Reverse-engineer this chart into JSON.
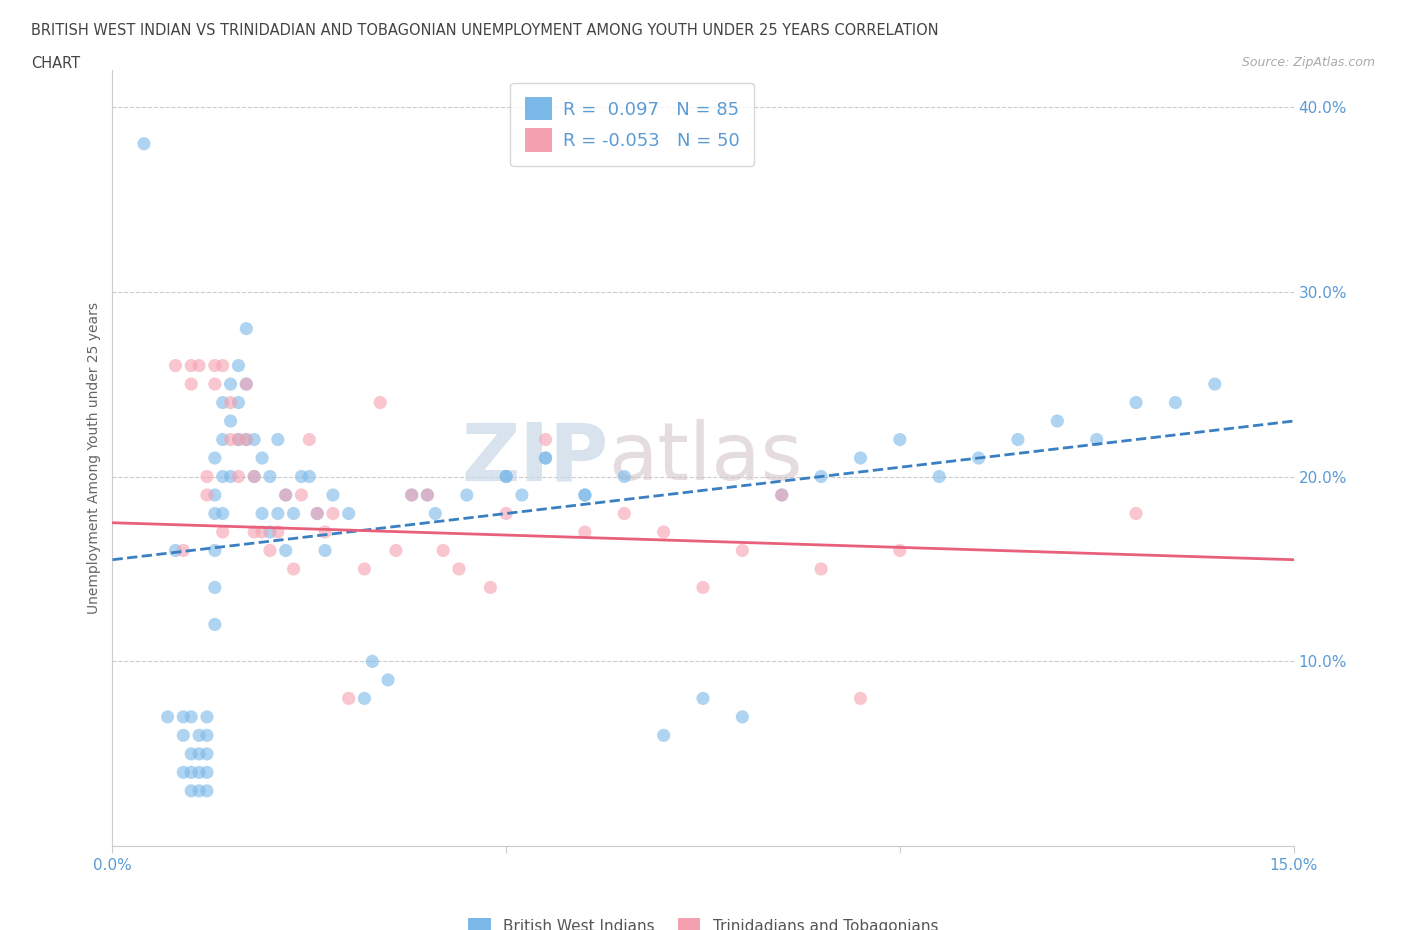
{
  "title_line1": "BRITISH WEST INDIAN VS TRINIDADIAN AND TOBAGONIAN UNEMPLOYMENT AMONG YOUTH UNDER 25 YEARS CORRELATION",
  "title_line2": "CHART",
  "source_text": "Source: ZipAtlas.com",
  "ylabel": "Unemployment Among Youth under 25 years",
  "xlim": [
    0.0,
    0.15
  ],
  "ylim": [
    0.0,
    0.42
  ],
  "blue_R": 0.097,
  "blue_N": 85,
  "pink_R": -0.053,
  "pink_N": 50,
  "blue_color": "#7ab8e8",
  "pink_color": "#f5a0b0",
  "blue_line_color": "#3a7fc1",
  "pink_line_color": "#e8607a",
  "watermark_zip": "ZIP",
  "watermark_atlas": "atlas",
  "legend_label_blue": "British West Indians",
  "legend_label_pink": "Trinidadians and Tobagonians",
  "blue_scatter_x": [
    0.004,
    0.007,
    0.008,
    0.009,
    0.009,
    0.009,
    0.01,
    0.01,
    0.01,
    0.01,
    0.011,
    0.011,
    0.011,
    0.011,
    0.012,
    0.012,
    0.012,
    0.012,
    0.012,
    0.013,
    0.013,
    0.013,
    0.013,
    0.013,
    0.013,
    0.014,
    0.014,
    0.014,
    0.014,
    0.015,
    0.015,
    0.015,
    0.016,
    0.016,
    0.016,
    0.017,
    0.017,
    0.017,
    0.018,
    0.018,
    0.019,
    0.019,
    0.02,
    0.02,
    0.021,
    0.021,
    0.022,
    0.022,
    0.023,
    0.024,
    0.025,
    0.026,
    0.027,
    0.028,
    0.03,
    0.032,
    0.033,
    0.035,
    0.038,
    0.04,
    0.041,
    0.045,
    0.05,
    0.052,
    0.055,
    0.06,
    0.065,
    0.07,
    0.075,
    0.08,
    0.085,
    0.09,
    0.095,
    0.1,
    0.105,
    0.11,
    0.115,
    0.12,
    0.125,
    0.13,
    0.135,
    0.14,
    0.05,
    0.055,
    0.06
  ],
  "blue_scatter_y": [
    0.38,
    0.07,
    0.16,
    0.06,
    0.07,
    0.04,
    0.07,
    0.05,
    0.04,
    0.03,
    0.06,
    0.05,
    0.04,
    0.03,
    0.07,
    0.06,
    0.05,
    0.04,
    0.03,
    0.21,
    0.19,
    0.18,
    0.16,
    0.14,
    0.12,
    0.24,
    0.22,
    0.2,
    0.18,
    0.25,
    0.23,
    0.2,
    0.26,
    0.24,
    0.22,
    0.28,
    0.25,
    0.22,
    0.22,
    0.2,
    0.21,
    0.18,
    0.2,
    0.17,
    0.22,
    0.18,
    0.19,
    0.16,
    0.18,
    0.2,
    0.2,
    0.18,
    0.16,
    0.19,
    0.18,
    0.08,
    0.1,
    0.09,
    0.19,
    0.19,
    0.18,
    0.19,
    0.2,
    0.19,
    0.21,
    0.19,
    0.2,
    0.06,
    0.08,
    0.07,
    0.19,
    0.2,
    0.21,
    0.22,
    0.2,
    0.21,
    0.22,
    0.23,
    0.22,
    0.24,
    0.24,
    0.25,
    0.2,
    0.21,
    0.19
  ],
  "pink_scatter_x": [
    0.008,
    0.009,
    0.01,
    0.01,
    0.011,
    0.012,
    0.012,
    0.013,
    0.013,
    0.014,
    0.014,
    0.015,
    0.015,
    0.016,
    0.016,
    0.017,
    0.017,
    0.018,
    0.018,
    0.019,
    0.02,
    0.021,
    0.022,
    0.023,
    0.024,
    0.025,
    0.026,
    0.027,
    0.028,
    0.03,
    0.032,
    0.034,
    0.036,
    0.038,
    0.04,
    0.042,
    0.044,
    0.048,
    0.05,
    0.055,
    0.06,
    0.065,
    0.07,
    0.075,
    0.08,
    0.085,
    0.09,
    0.095,
    0.1,
    0.13
  ],
  "pink_scatter_y": [
    0.26,
    0.16,
    0.26,
    0.25,
    0.26,
    0.2,
    0.19,
    0.26,
    0.25,
    0.26,
    0.17,
    0.24,
    0.22,
    0.22,
    0.2,
    0.25,
    0.22,
    0.2,
    0.17,
    0.17,
    0.16,
    0.17,
    0.19,
    0.15,
    0.19,
    0.22,
    0.18,
    0.17,
    0.18,
    0.08,
    0.15,
    0.24,
    0.16,
    0.19,
    0.19,
    0.16,
    0.15,
    0.14,
    0.18,
    0.22,
    0.17,
    0.18,
    0.17,
    0.14,
    0.16,
    0.19,
    0.15,
    0.08,
    0.16,
    0.18
  ]
}
